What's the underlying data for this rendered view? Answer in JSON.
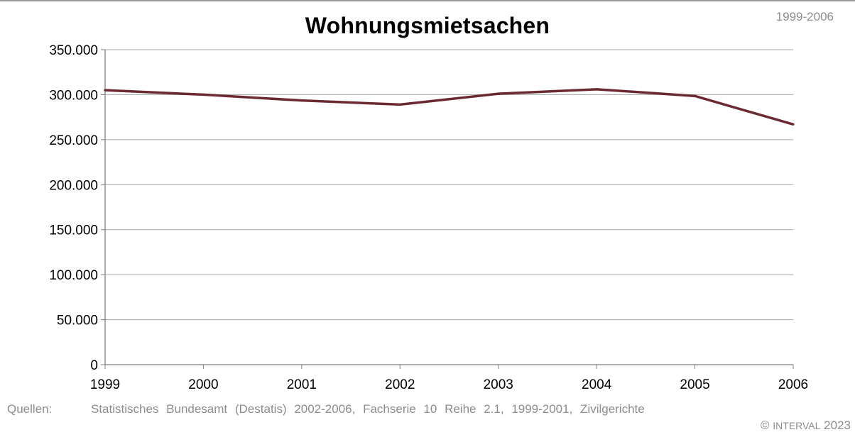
{
  "period_label": "1999-2006",
  "footer": {
    "sources_label": "Quellen:",
    "sources_text": "Statistisches Bundesamt (Destatis) 2002-2006, Fachserie 10 Reihe 2.1, 1999-2001, Zivilgerichte",
    "copyright_symbol": "©",
    "copyright_brand": "INTERVAL",
    "copyright_year": "2023"
  },
  "chart_data": {
    "type": "line",
    "title": "Wohnungsmietsachen",
    "xlabel": "",
    "ylabel": "",
    "x": [
      "1999",
      "2000",
      "2001",
      "2002",
      "2003",
      "2004",
      "2005",
      "2006"
    ],
    "series": [
      {
        "values": [
          305000,
          300000,
          293500,
          289000,
          301000,
          306000,
          298500,
          267000
        ],
        "color": "#6b2a31"
      }
    ],
    "ylim": [
      0,
      350000
    ],
    "yticks": [
      0,
      50000,
      100000,
      150000,
      200000,
      250000,
      300000,
      350000
    ],
    "ytick_labels": [
      "0",
      "50.000",
      "100.000",
      "150.000",
      "200.000",
      "250.000",
      "300.000",
      "350.000"
    ],
    "grid": true,
    "legend": "none"
  }
}
